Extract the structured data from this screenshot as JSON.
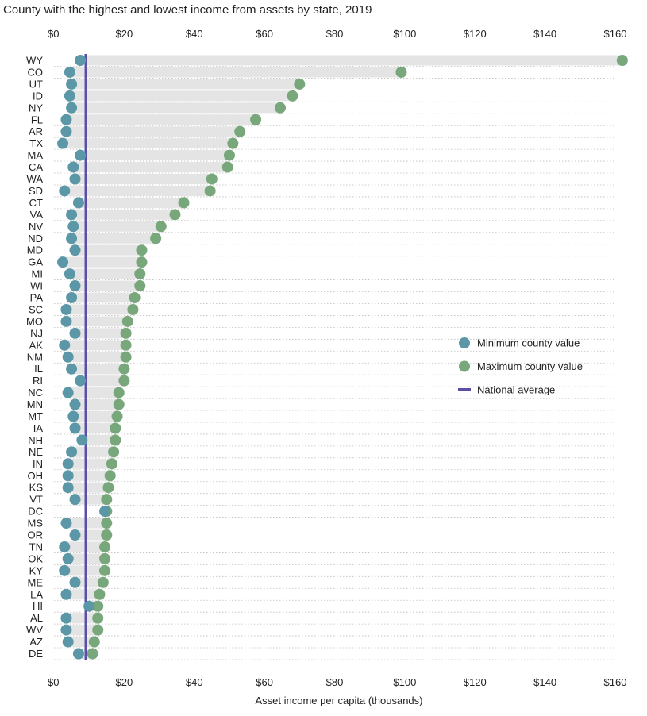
{
  "chart_data": {
    "type": "dot",
    "title": "County with the highest and lowest income from assets by state, 2019",
    "xlabel": "Asset income per capita (thousands)",
    "ylabel": "",
    "xlim": [
      0,
      160
    ],
    "x_ticks": [
      0,
      20,
      40,
      60,
      80,
      100,
      120,
      140,
      160
    ],
    "x_tick_labels": [
      "$0",
      "$20",
      "$40",
      "$60",
      "$80",
      "$100",
      "$120",
      "$140",
      "$160"
    ],
    "grid": "dotted horizontal",
    "legend_position": "right",
    "categories": [
      "WY",
      "CO",
      "UT",
      "ID",
      "NY",
      "FL",
      "AR",
      "TX",
      "MA",
      "CA",
      "WA",
      "SD",
      "CT",
      "VA",
      "NV",
      "ND",
      "MD",
      "GA",
      "MI",
      "WI",
      "PA",
      "SC",
      "MO",
      "NJ",
      "AK",
      "NM",
      "IL",
      "RI",
      "NC",
      "MN",
      "MT",
      "IA",
      "NH",
      "NE",
      "IN",
      "OH",
      "KS",
      "VT",
      "DC",
      "MS",
      "OR",
      "TN",
      "OK",
      "KY",
      "ME",
      "LA",
      "HI",
      "AL",
      "WV",
      "AZ",
      "DE"
    ],
    "series": [
      {
        "name": "Minimum county value",
        "color": "#5b97a6",
        "values": [
          7.5,
          4.5,
          5,
          4.5,
          5,
          3.5,
          3.5,
          2.5,
          7.5,
          5.5,
          6,
          3,
          7,
          5,
          5.5,
          5,
          6,
          2.5,
          4.5,
          6,
          5,
          3.5,
          3.5,
          6,
          3,
          4,
          5,
          7.5,
          4,
          6,
          5.5,
          6,
          8,
          5,
          4,
          4,
          4,
          6,
          14.5,
          3.5,
          6,
          3,
          4,
          3,
          6,
          3.5,
          10,
          3.5,
          3.5,
          4,
          7
        ]
      },
      {
        "name": "Maximum county value",
        "color": "#77a77a",
        "values": [
          162,
          99,
          70,
          68,
          64.5,
          57.5,
          53,
          51,
          50,
          49.5,
          45,
          44.5,
          37,
          34.5,
          30.5,
          29,
          25,
          25,
          24.5,
          24.5,
          23,
          22.5,
          21,
          20.5,
          20.5,
          20.5,
          20,
          20,
          18.5,
          18.5,
          18,
          17.5,
          17.5,
          17,
          16.5,
          16,
          15.5,
          15,
          15,
          15,
          15,
          14.5,
          14.5,
          14.5,
          14,
          13,
          12.5,
          12.5,
          12.5,
          11.5,
          11
        ]
      },
      {
        "name": "National average",
        "color": "#5a50a8",
        "value": 9
      }
    ]
  }
}
